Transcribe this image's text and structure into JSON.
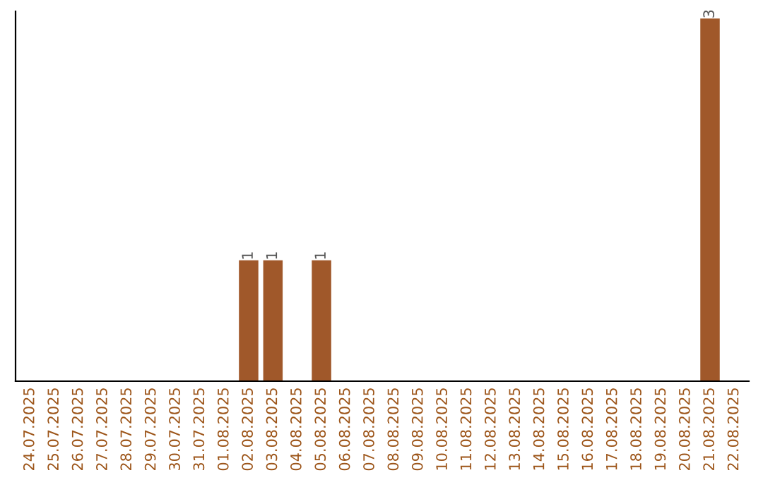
{
  "chart_data": {
    "type": "bar",
    "categories": [
      "24.07.2025",
      "25.07.2025",
      "26.07.2025",
      "27.07.2025",
      "28.07.2025",
      "29.07.2025",
      "30.07.2025",
      "31.07.2025",
      "01.08.2025",
      "02.08.2025",
      "03.08.2025",
      "04.08.2025",
      "05.08.2025",
      "06.08.2025",
      "07.08.2025",
      "08.08.2025",
      "09.08.2025",
      "10.08.2025",
      "11.08.2025",
      "12.08.2025",
      "13.08.2025",
      "14.08.2025",
      "15.08.2025",
      "16.08.2025",
      "17.08.2025",
      "18.08.2025",
      "19.08.2025",
      "20.08.2025",
      "21.08.2025",
      "22.08.2025"
    ],
    "values": [
      0,
      0,
      0,
      0,
      0,
      0,
      0,
      0,
      0,
      1,
      1,
      0,
      1,
      0,
      0,
      0,
      0,
      0,
      0,
      0,
      0,
      0,
      0,
      0,
      0,
      0,
      0,
      0,
      3,
      0
    ],
    "value_labels": [
      null,
      null,
      null,
      null,
      null,
      null,
      null,
      null,
      null,
      "1",
      "1",
      null,
      "1",
      null,
      null,
      null,
      null,
      null,
      null,
      null,
      null,
      null,
      null,
      null,
      null,
      null,
      null,
      null,
      "3",
      null
    ],
    "color": "#a0582a",
    "ylim": [
      0,
      3.06
    ],
    "tick_labels": "x",
    "grid": false,
    "legend": false
  }
}
